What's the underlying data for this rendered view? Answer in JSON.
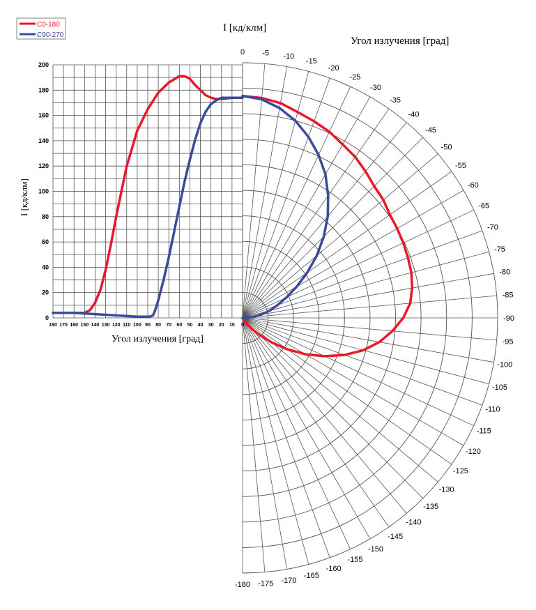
{
  "chart_data": {
    "type": "line",
    "polar_title": "I  [кд/клм]",
    "angle_label": "Угол излучения    [град]",
    "xlabel": "Угол излучения [град]",
    "ylabel": "I [кд/клм]",
    "ylim": [
      0,
      200
    ],
    "xlim": [
      180,
      0
    ],
    "y_ticks": [
      "0",
      "20",
      "40",
      "60",
      "80",
      "100",
      "120",
      "140",
      "160",
      "180",
      "200"
    ],
    "x_ticks": [
      "180",
      "170",
      "160",
      "150",
      "140",
      "130",
      "120",
      "110",
      "100",
      "90",
      "80",
      "70",
      "60",
      "50",
      "40",
      "30",
      "20",
      "10",
      "0"
    ],
    "polar_angle_labels": [
      "0",
      "-5",
      "-10",
      "-15",
      "-20",
      "-25",
      "-30",
      "-35",
      "-40",
      "-45",
      "-50",
      "-55",
      "-60",
      "-65",
      "-70",
      "-75",
      "-80",
      "-85",
      "-90",
      "-95",
      "-100",
      "-105",
      "-110",
      "-115",
      "-120",
      "-125",
      "-130",
      "-135",
      "-140",
      "-145",
      "-150",
      "-155",
      "-160",
      "-165",
      "-170",
      "-175",
      "-180"
    ],
    "legend": "top-left",
    "grid": true,
    "colors": {
      "C0-180": "#e8192c",
      "C90-270": "#3b4a9a"
    },
    "series": [
      {
        "name": "C0-180",
        "cartesian": [
          [
            180,
            4
          ],
          [
            160,
            4
          ],
          [
            150,
            4
          ],
          [
            145,
            6
          ],
          [
            140,
            12
          ],
          [
            135,
            22
          ],
          [
            130,
            38
          ],
          [
            125,
            58
          ],
          [
            120,
            80
          ],
          [
            115,
            100
          ],
          [
            110,
            120
          ],
          [
            100,
            148
          ],
          [
            90,
            165
          ],
          [
            80,
            178
          ],
          [
            70,
            186
          ],
          [
            60,
            191
          ],
          [
            55,
            191
          ],
          [
            50,
            189
          ],
          [
            45,
            184
          ],
          [
            40,
            180
          ],
          [
            35,
            176
          ],
          [
            30,
            174
          ],
          [
            25,
            173
          ],
          [
            20,
            173
          ],
          [
            10,
            174
          ],
          [
            5,
            174
          ],
          [
            0,
            174
          ]
        ],
        "polar": [
          [
            0,
            174
          ],
          [
            5,
            173
          ],
          [
            10,
            171
          ],
          [
            15,
            167
          ],
          [
            20,
            164
          ],
          [
            25,
            161
          ],
          [
            30,
            157
          ],
          [
            35,
            154
          ],
          [
            40,
            150
          ],
          [
            45,
            146
          ],
          [
            50,
            144
          ],
          [
            55,
            141
          ],
          [
            60,
            140
          ],
          [
            65,
            139
          ],
          [
            70,
            138
          ],
          [
            75,
            137
          ],
          [
            80,
            135
          ],
          [
            85,
            132
          ],
          [
            90,
            126
          ],
          [
            95,
            118
          ],
          [
            100,
            109
          ],
          [
            105,
            98
          ],
          [
            110,
            85
          ],
          [
            115,
            71
          ],
          [
            120,
            57
          ],
          [
            125,
            43
          ],
          [
            130,
            30
          ],
          [
            135,
            19
          ],
          [
            140,
            11
          ],
          [
            145,
            5
          ],
          [
            150,
            2
          ],
          [
            160,
            0
          ]
        ]
      },
      {
        "name": "C90-270",
        "cartesian": [
          [
            180,
            4
          ],
          [
            160,
            4
          ],
          [
            140,
            3
          ],
          [
            120,
            2
          ],
          [
            100,
            1
          ],
          [
            92,
            1
          ],
          [
            88,
            1
          ],
          [
            85,
            2
          ],
          [
            83,
            6
          ],
          [
            80,
            14
          ],
          [
            75,
            30
          ],
          [
            70,
            48
          ],
          [
            65,
            68
          ],
          [
            60,
            88
          ],
          [
            55,
            108
          ],
          [
            50,
            125
          ],
          [
            45,
            141
          ],
          [
            40,
            154
          ],
          [
            35,
            163
          ],
          [
            30,
            169
          ],
          [
            25,
            172
          ],
          [
            20,
            174
          ],
          [
            15,
            174
          ],
          [
            10,
            174
          ],
          [
            5,
            174
          ],
          [
            0,
            174
          ]
        ],
        "polar": [
          [
            0,
            174
          ],
          [
            5,
            172
          ],
          [
            10,
            167
          ],
          [
            15,
            160
          ],
          [
            20,
            151
          ],
          [
            25,
            141
          ],
          [
            30,
            130
          ],
          [
            35,
            117
          ],
          [
            40,
            104
          ],
          [
            45,
            90
          ],
          [
            50,
            76
          ],
          [
            55,
            62
          ],
          [
            60,
            49
          ],
          [
            65,
            38
          ],
          [
            70,
            29
          ],
          [
            75,
            22
          ],
          [
            80,
            15
          ],
          [
            85,
            8
          ],
          [
            90,
            3
          ],
          [
            95,
            1
          ],
          [
            100,
            0
          ]
        ]
      }
    ]
  }
}
